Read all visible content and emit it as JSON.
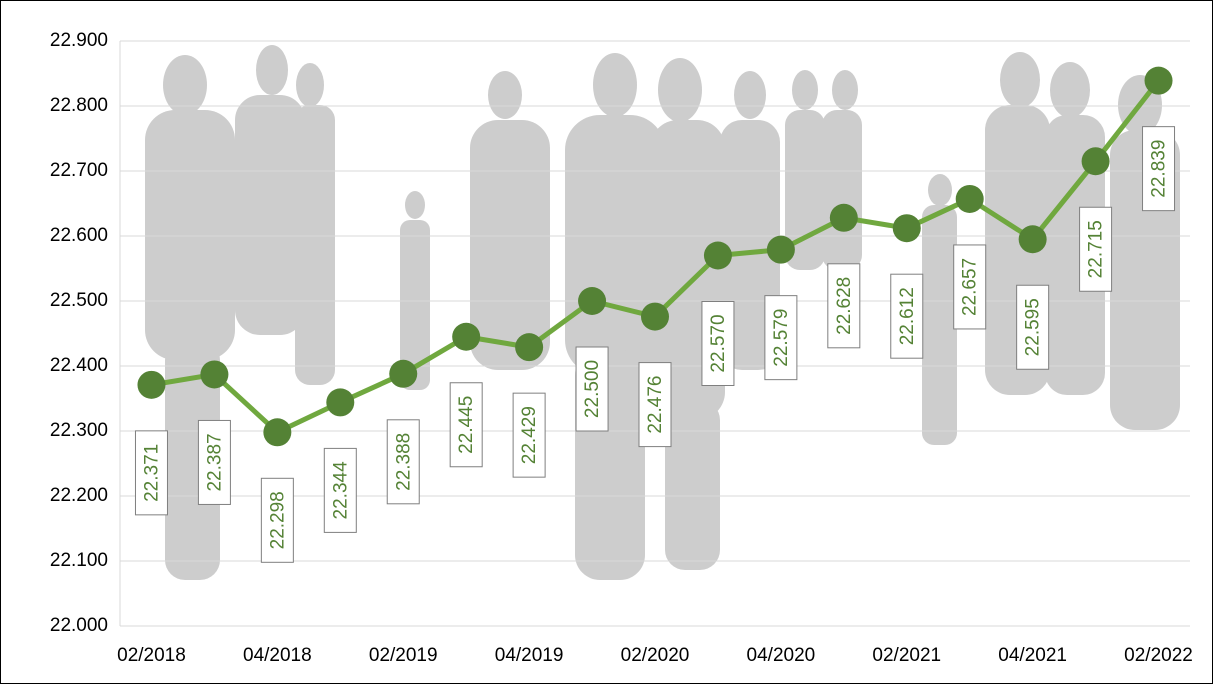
{
  "chart_data": {
    "type": "line",
    "categories": [
      "02/2018",
      null,
      "04/2018",
      null,
      "02/2019",
      null,
      "04/2019",
      null,
      "02/2020",
      null,
      "04/2020",
      null,
      "02/2021",
      null,
      "04/2021",
      null,
      "02/2022"
    ],
    "series": [
      {
        "color": "#70a83f",
        "marker_color": "#548235",
        "values": [
          22.371,
          22.387,
          22.298,
          22.344,
          22.388,
          22.445,
          22.429,
          22.5,
          22.476,
          22.57,
          22.579,
          22.628,
          22.612,
          22.657,
          22.595,
          22.715,
          22.839
        ],
        "value_labels": [
          "22.371",
          "22.387",
          "22.298",
          "22.344",
          "22.388",
          "22.445",
          "22.429",
          "22.500",
          "22.476",
          "22.570",
          "22.579",
          "22.628",
          "22.612",
          "22.657",
          "22.595",
          "22.715",
          "22.839"
        ]
      }
    ],
    "ylim": [
      22.0,
      22.9
    ],
    "yticks": [
      {
        "value": 22.0,
        "label": "22.000"
      },
      {
        "value": 22.1,
        "label": "22.100"
      },
      {
        "value": 22.2,
        "label": "22.200"
      },
      {
        "value": 22.3,
        "label": "22.300"
      },
      {
        "value": 22.4,
        "label": "22.400"
      },
      {
        "value": 22.5,
        "label": "22.500"
      },
      {
        "value": 22.6,
        "label": "22.600"
      },
      {
        "value": 22.7,
        "label": "22.700"
      },
      {
        "value": 22.8,
        "label": "22.800"
      },
      {
        "value": 22.9,
        "label": "22.900"
      }
    ],
    "grid": true
  }
}
